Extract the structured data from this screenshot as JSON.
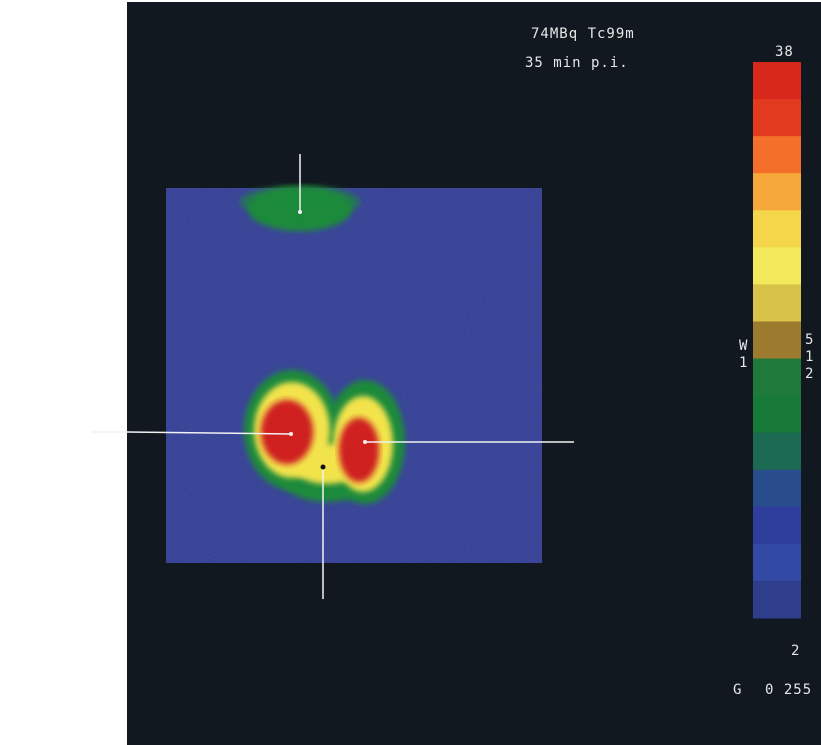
{
  "header": {
    "dose_label": "74MBq Tc99m",
    "time_label": "35 min p.i."
  },
  "colorbar": {
    "max_label": "38",
    "window_letter": "W",
    "window_index": "1",
    "window_value_digits": [
      "5",
      "1",
      "2"
    ],
    "min_label": "2",
    "stops": [
      "#d8271b",
      "#e23a1f",
      "#f36f2a",
      "#f7a83a",
      "#f5d64a",
      "#f2ea5c",
      "#d8c24a",
      "#9c7a2e",
      "#1f7a3a",
      "#177a38",
      "#1c6a52",
      "#284c8c",
      "#2f3d9c",
      "#324aa4",
      "#2e3d8c"
    ]
  },
  "footer": {
    "gray_label": "G",
    "range_label": "0 255"
  },
  "colors": {
    "panel_background": "#121820",
    "field_blue": "#2f3b95",
    "hot_red": "#cc1d1d",
    "warm_yellow": "#f2e34c",
    "uptake_green": "#1f8a3a",
    "pointer_line": "#f2f2f2"
  }
}
